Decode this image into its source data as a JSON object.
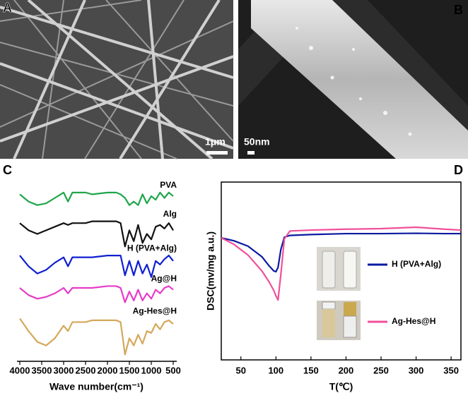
{
  "panels": {
    "a": {
      "label": "A",
      "scale_bar": "1μm"
    },
    "b": {
      "label": "B",
      "scale_bar": "50nm"
    },
    "c": {
      "label": "C"
    },
    "d": {
      "label": "D"
    }
  },
  "chart_data": [
    {
      "type": "line",
      "xlabel": "Wave number(cm⁻¹)",
      "x": [
        4000,
        3800,
        3600,
        3400,
        3200,
        3000,
        2900,
        2800,
        2500,
        2350,
        2000,
        1800,
        1700,
        1600,
        1500,
        1400,
        1300,
        1200,
        1100,
        1000,
        900,
        800,
        700,
        600,
        500
      ],
      "xlim": [
        4000,
        500
      ],
      "xticks": [
        4000,
        3500,
        3000,
        2500,
        2000,
        1500,
        1000,
        500
      ],
      "ylim": [
        0,
        100
      ],
      "series": [
        {
          "name": "PVA",
          "color": "#1fa64a",
          "values": [
            92,
            88,
            86,
            87,
            90,
            93,
            88,
            93,
            93,
            92,
            93,
            93,
            92,
            90,
            86,
            88,
            86,
            92,
            87,
            91,
            89,
            93,
            90,
            93,
            91
          ]
        },
        {
          "name": "Alg",
          "color": "#111111",
          "values": [
            76,
            72,
            70,
            72,
            74,
            76,
            75,
            76,
            76,
            77,
            77,
            77,
            76,
            63,
            72,
            66,
            75,
            65,
            70,
            67,
            74,
            75,
            73,
            76,
            72
          ]
        },
        {
          "name": "H (PVA+Alg)",
          "color": "#1020d0",
          "values": [
            58,
            52,
            48,
            50,
            54,
            57,
            52,
            57,
            57,
            57,
            58,
            58,
            58,
            47,
            55,
            47,
            55,
            48,
            53,
            46,
            55,
            53,
            56,
            58,
            55
          ]
        },
        {
          "name": "Ag@H",
          "color": "#e63cc8",
          "values": [
            40,
            36,
            34,
            35,
            37,
            40,
            37,
            40,
            40,
            40,
            41,
            41,
            40,
            32,
            38,
            33,
            39,
            33,
            37,
            34,
            39,
            37,
            40,
            41,
            39
          ]
        },
        {
          "name": "Ag-Hes@H",
          "color": "#d4a85a",
          "values": [
            23,
            16,
            10,
            8,
            12,
            19,
            16,
            21,
            21,
            22,
            22,
            22,
            21,
            3,
            12,
            8,
            14,
            9,
            16,
            15,
            20,
            17,
            21,
            22,
            20
          ]
        }
      ]
    },
    {
      "type": "line",
      "xlabel": "T(℃)",
      "ylabel": "DSC(mv/mg a.u.)",
      "x": [
        22,
        40,
        60,
        80,
        90,
        97,
        100,
        103,
        107,
        112,
        120,
        150,
        200,
        250,
        300,
        340,
        364
      ],
      "xlim": [
        22,
        364
      ],
      "xticks": [
        50,
        100,
        150,
        200,
        250,
        300,
        350
      ],
      "ylim": [
        0,
        100
      ],
      "legend": "right",
      "series": [
        {
          "name": "H (PVA+Alg)",
          "color": "#0a1aa0",
          "values": [
            68.6,
            67,
            64,
            58,
            53,
            50,
            49.6,
            52,
            62,
            69,
            70,
            70.5,
            71,
            71,
            71.2,
            71,
            71
          ]
        },
        {
          "name": "Ag-Hes@H",
          "color": "#f0509a",
          "values": [
            68.6,
            65,
            59,
            50,
            44,
            39,
            36,
            33.7,
            48,
            68,
            72.5,
            73,
            73.5,
            73.8,
            74.6,
            73.5,
            73
          ]
        }
      ]
    }
  ]
}
